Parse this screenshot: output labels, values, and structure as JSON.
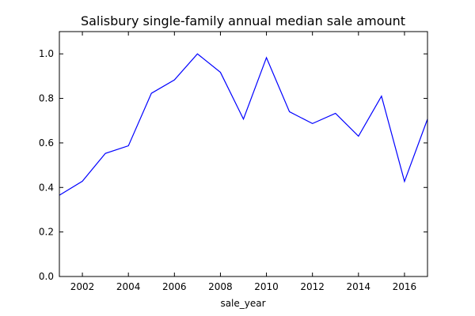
{
  "chart_data": {
    "type": "line",
    "title": "Salisbury single-family annual median sale amount",
    "xlabel": "sale_year",
    "ylabel": "",
    "xlim": [
      2001,
      2017
    ],
    "ylim": [
      0.0,
      1.1
    ],
    "x_ticks": [
      2002,
      2004,
      2006,
      2008,
      2010,
      2012,
      2014,
      2016
    ],
    "y_ticks": [
      0.0,
      0.2,
      0.4,
      0.6,
      0.8,
      1.0
    ],
    "x_tick_labels": [
      "2002",
      "2004",
      "2006",
      "2008",
      "2010",
      "2012",
      "2014",
      "2016"
    ],
    "y_tick_labels": [
      "0.0",
      "0.2",
      "0.4",
      "0.6",
      "0.8",
      "1.0"
    ],
    "grid": false,
    "line_color": "#0000ff",
    "series": [
      {
        "x": [
          2001,
          2002,
          2003,
          2004,
          2005,
          2006,
          2007,
          2008,
          2009,
          2010,
          2011,
          2012,
          2013,
          2014,
          2015,
          2016,
          2017
        ],
        "values": [
          0.365,
          0.428,
          0.553,
          0.587,
          0.823,
          0.883,
          1.0,
          0.917,
          0.707,
          0.983,
          0.74,
          0.687,
          0.733,
          0.63,
          0.81,
          0.427,
          0.707
        ]
      }
    ]
  }
}
